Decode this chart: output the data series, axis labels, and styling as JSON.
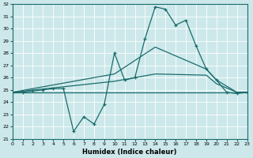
{
  "xlabel": "Humidex (Indice chaleur)",
  "bg_color": "#cce8ea",
  "grid_color": "#b0d0d4",
  "line_color": "#1a6b6b",
  "xmin": 0,
  "xmax": 23,
  "ymin": 21,
  "ymax": 32,
  "xticks": [
    0,
    1,
    2,
    3,
    4,
    5,
    6,
    7,
    8,
    9,
    10,
    11,
    12,
    13,
    14,
    15,
    16,
    17,
    18,
    19,
    20,
    21,
    22,
    23
  ],
  "yticks": [
    21,
    22,
    23,
    24,
    25,
    26,
    27,
    28,
    29,
    30,
    31,
    32
  ],
  "series1_x": [
    0,
    1,
    2,
    3,
    4,
    5,
    6,
    7,
    8,
    9,
    10,
    11,
    12,
    13,
    14,
    15,
    16,
    17,
    18,
    19,
    20,
    21,
    22,
    23
  ],
  "series1_y": [
    24.8,
    24.8,
    24.9,
    25.0,
    25.1,
    25.1,
    21.6,
    22.8,
    22.2,
    23.8,
    28.0,
    25.8,
    26.0,
    29.2,
    31.8,
    31.6,
    30.3,
    30.7,
    28.6,
    26.7,
    25.8,
    24.8,
    24.7,
    24.8
  ],
  "series2_x": [
    0,
    22,
    23
  ],
  "series2_y": [
    24.8,
    24.8,
    24.8
  ],
  "series3_x": [
    0,
    10,
    14,
    19,
    20,
    22,
    23
  ],
  "series3_y": [
    24.8,
    26.3,
    28.5,
    26.7,
    25.8,
    24.8,
    24.8
  ],
  "series4_x": [
    0,
    10,
    14,
    19,
    20,
    22,
    23
  ],
  "series4_y": [
    24.8,
    25.7,
    26.3,
    26.2,
    25.5,
    24.8,
    24.8
  ]
}
